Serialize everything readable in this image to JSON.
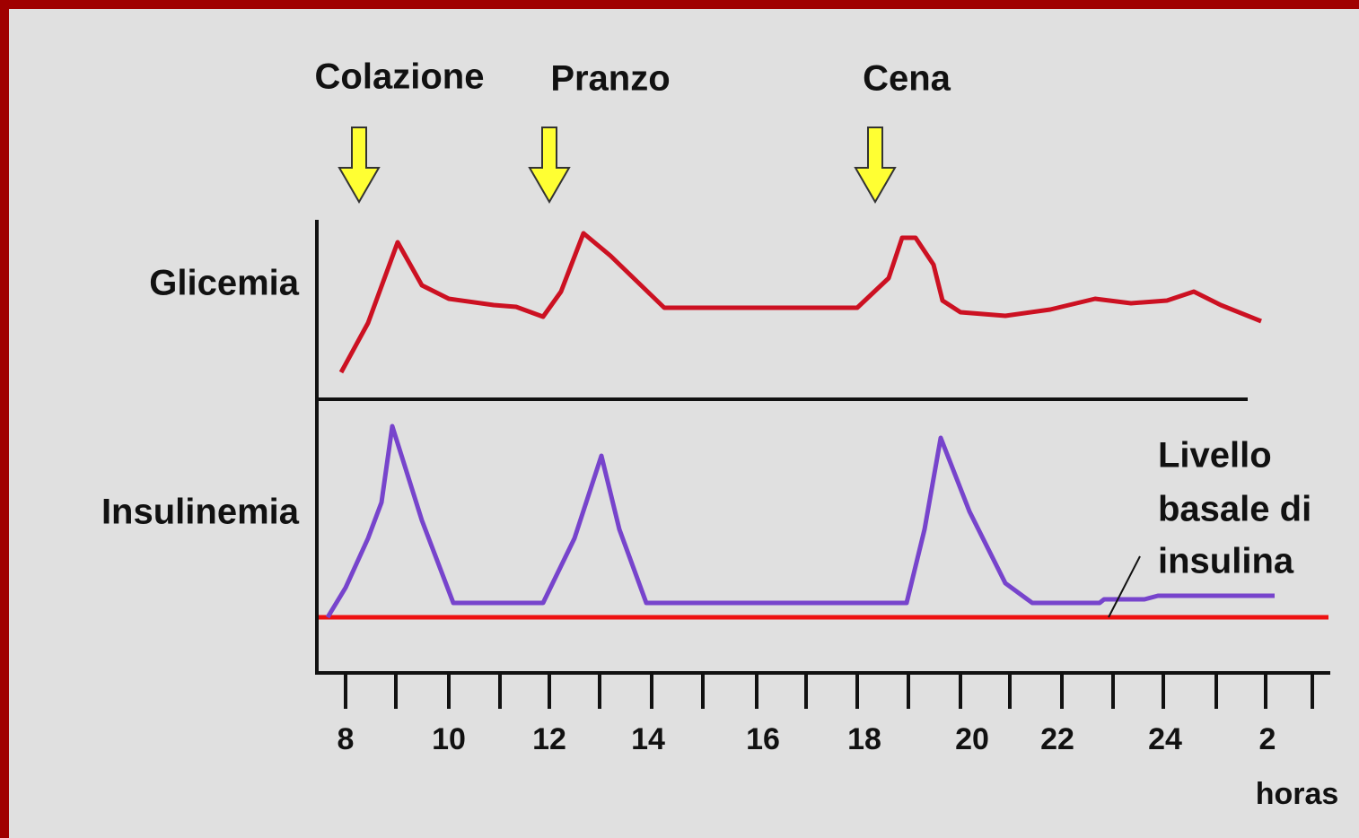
{
  "meals": [
    "Colazione",
    "Pranzo",
    "Cena"
  ],
  "y_labels": {
    "top": "Glicemia",
    "bottom": "Insulinemia"
  },
  "annotation": [
    "Livello",
    "basale di",
    "insulina"
  ],
  "x_tick_labels": [
    "8",
    "10",
    "12",
    "14",
    "16",
    "18",
    "20",
    "22",
    "24",
    "2"
  ],
  "x_axis_label": "horas"
}
